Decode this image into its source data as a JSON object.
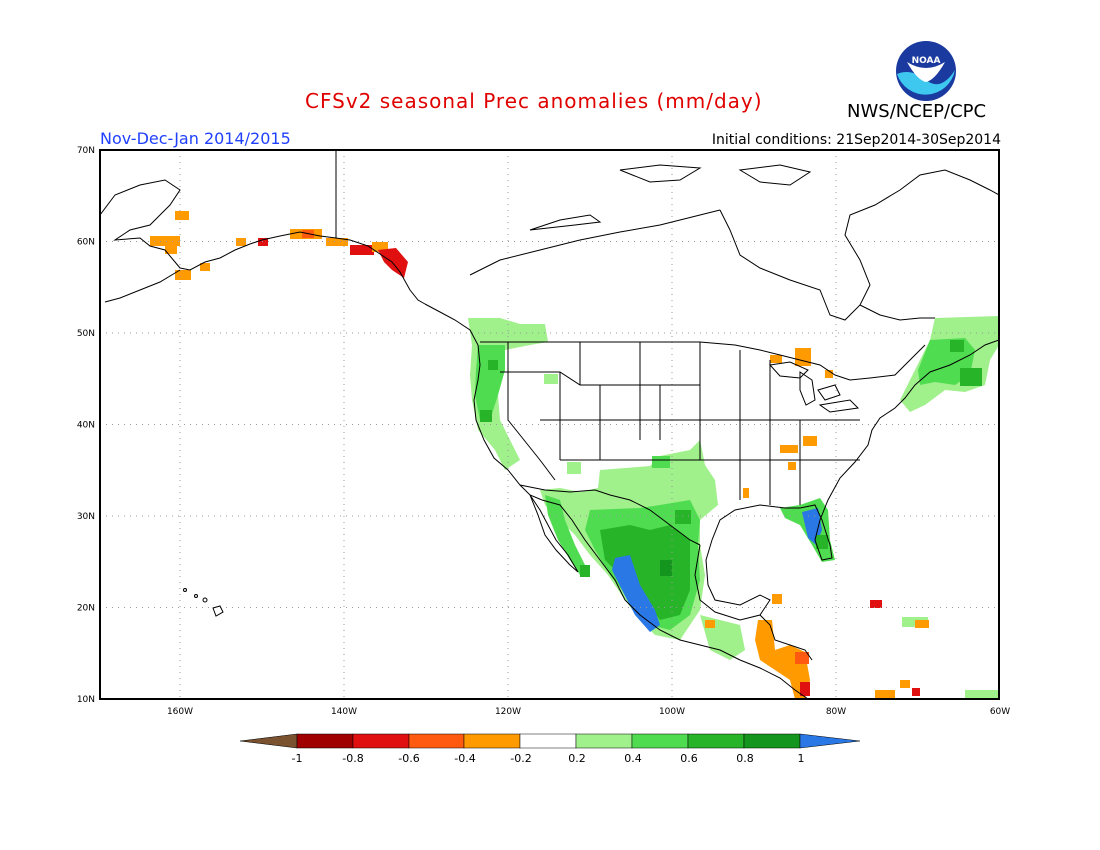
{
  "header": {
    "title": "CFSv2 seasonal Prec anomalies (mm/day)",
    "period": "Nov-Dec-Jan 2014/2015",
    "initial_conditions": "Initial conditions: 21Sep2014-30Sep2014",
    "agency": "NWS/NCEP/CPC",
    "logo_text": "NOAA"
  },
  "map": {
    "region": "North America",
    "lat_labels": [
      "70N",
      "60N",
      "50N",
      "40N",
      "30N",
      "20N",
      "10N"
    ],
    "lon_labels": [
      "160W",
      "140W",
      "120W",
      "100W",
      "80W",
      "60W"
    ],
    "grid": "dotted",
    "anomaly_regions": [
      {
        "area": "Pacific Northwest / northern California",
        "category": "0.4 to 0.8"
      },
      {
        "area": "Southwest US / Texas / northern Mexico",
        "category": "0.2 to 0.8"
      },
      {
        "area": "Western Mexico coast",
        "category": "> 1"
      },
      {
        "area": "Florida / southeast coast",
        "category": "0.6 to > 1"
      },
      {
        "area": "New England / Maritimes",
        "category": "0.4 to 0.8"
      },
      {
        "area": "Southern Alaska",
        "category": "-0.2 to -0.8"
      },
      {
        "area": "Central America",
        "category": "-0.2 to -0.8"
      }
    ]
  },
  "colorbar": {
    "labels": [
      "-1",
      "-0.8",
      "-0.6",
      "-0.4",
      "-0.2",
      "0.2",
      "0.4",
      "0.6",
      "0.8",
      "1"
    ],
    "colors": [
      "#7a5230",
      "#a00000",
      "#e01010",
      "#ff5a10",
      "#ff9a00",
      "#ffffff",
      "#a0f08c",
      "#50dc50",
      "#28b428",
      "#14961e",
      "#2a78e6"
    ]
  }
}
